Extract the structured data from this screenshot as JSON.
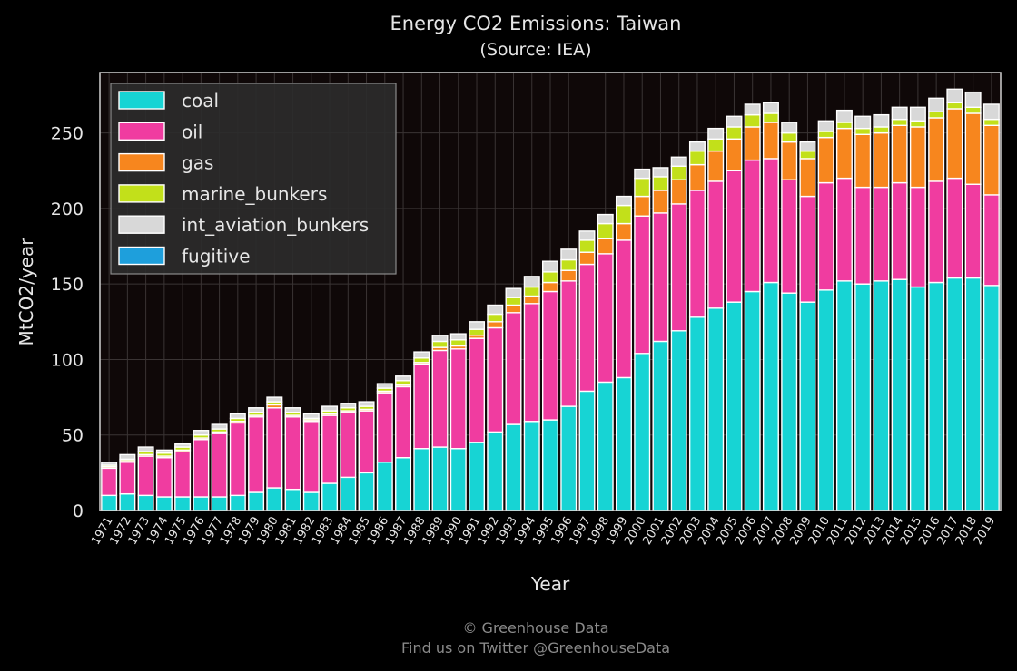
{
  "chart_data": {
    "type": "bar",
    "stacked": true,
    "title": "Energy CO2 Emissions: Taiwan",
    "subtitle": "(Source: IEA)",
    "xlabel": "Year",
    "ylabel": "MtCO2/year",
    "ylim": [
      0,
      290
    ],
    "yticks": [
      0,
      50,
      100,
      150,
      200,
      250
    ],
    "grid": true,
    "legend_position": "top-left",
    "categories": [
      "1971",
      "1972",
      "1973",
      "1974",
      "1975",
      "1976",
      "1977",
      "1978",
      "1979",
      "1980",
      "1981",
      "1982",
      "1983",
      "1984",
      "1985",
      "1986",
      "1987",
      "1988",
      "1989",
      "1990",
      "1991",
      "1992",
      "1993",
      "1994",
      "1995",
      "1996",
      "1997",
      "1998",
      "1999",
      "2000",
      "2001",
      "2002",
      "2003",
      "2004",
      "2005",
      "2006",
      "2007",
      "2008",
      "2009",
      "2010",
      "2011",
      "2012",
      "2013",
      "2014",
      "2015",
      "2016",
      "2017",
      "2018",
      "2019"
    ],
    "series": [
      {
        "name": "coal",
        "color": "#17d4d4",
        "values": [
          10,
          11,
          10,
          9,
          9,
          9,
          9,
          10,
          12,
          15,
          14,
          12,
          18,
          22,
          25,
          32,
          35,
          41,
          42,
          41,
          45,
          52,
          57,
          59,
          60,
          69,
          79,
          85,
          88,
          104,
          112,
          119,
          128,
          134,
          138,
          145,
          151,
          144,
          138,
          146,
          152,
          150,
          152,
          153,
          148,
          151,
          154,
          154,
          149
        ]
      },
      {
        "name": "oil",
        "color": "#f03ca0",
        "values": [
          18,
          21,
          26,
          26,
          30,
          38,
          42,
          48,
          50,
          53,
          48,
          47,
          45,
          43,
          41,
          46,
          47,
          56,
          64,
          66,
          69,
          69,
          74,
          78,
          85,
          83,
          84,
          85,
          91,
          91,
          85,
          84,
          84,
          84,
          87,
          87,
          82,
          75,
          70,
          71,
          68,
          64,
          62,
          64,
          66,
          67,
          66,
          62,
          60
        ]
      },
      {
        "name": "gas",
        "color": "#f7861e",
        "values": [
          1,
          1,
          1,
          1,
          1,
          1,
          1,
          1,
          1,
          2,
          1,
          1,
          1,
          1,
          1,
          1,
          1,
          1,
          2,
          2,
          2,
          4,
          5,
          5,
          6,
          7,
          8,
          10,
          11,
          13,
          15,
          16,
          17,
          20,
          21,
          22,
          24,
          25,
          25,
          30,
          33,
          35,
          36,
          38,
          40,
          42,
          46,
          47,
          46
        ]
      },
      {
        "name": "marine_bunkers",
        "color": "#c2e01a",
        "values": [
          1,
          1,
          2,
          2,
          2,
          2,
          2,
          2,
          2,
          2,
          2,
          1,
          2,
          2,
          2,
          2,
          3,
          3,
          4,
          4,
          4,
          5,
          5,
          6,
          7,
          7,
          8,
          10,
          12,
          12,
          9,
          9,
          9,
          8,
          8,
          8,
          6,
          6,
          5,
          4,
          4,
          4,
          4,
          4,
          4,
          4,
          4,
          4,
          4
        ]
      },
      {
        "name": "int_aviation_bunkers",
        "color": "#d8d8d8",
        "values": [
          2,
          3,
          3,
          2,
          2,
          3,
          3,
          3,
          3,
          3,
          3,
          3,
          3,
          3,
          3,
          3,
          3,
          4,
          4,
          4,
          5,
          6,
          6,
          7,
          7,
          7,
          6,
          6,
          6,
          6,
          6,
          6,
          6,
          7,
          7,
          7,
          7,
          7,
          6,
          7,
          8,
          8,
          8,
          8,
          9,
          9,
          9,
          10,
          10
        ]
      },
      {
        "name": "fugitive",
        "color": "#1e9fdc",
        "values": [
          0,
          0,
          0,
          0,
          0,
          0,
          0,
          0,
          0,
          0,
          0,
          0,
          0,
          0,
          0,
          0,
          0,
          0,
          0,
          0,
          0,
          0,
          0,
          0,
          0,
          0,
          0,
          0,
          0,
          0,
          0,
          0,
          0,
          0,
          0,
          0,
          0,
          0,
          0,
          0,
          0,
          0,
          0,
          0,
          0,
          0,
          0,
          0,
          0
        ]
      }
    ]
  },
  "footer": {
    "line1": "© Greenhouse Data",
    "line2": "Find us on Twitter @GreenhouseData"
  },
  "colors": {
    "background": "#000000",
    "plot_background": "#0f0808",
    "grid": "#3a3434",
    "axis_text": "#e6e6e6",
    "footer_text": "#8a8a8a"
  }
}
